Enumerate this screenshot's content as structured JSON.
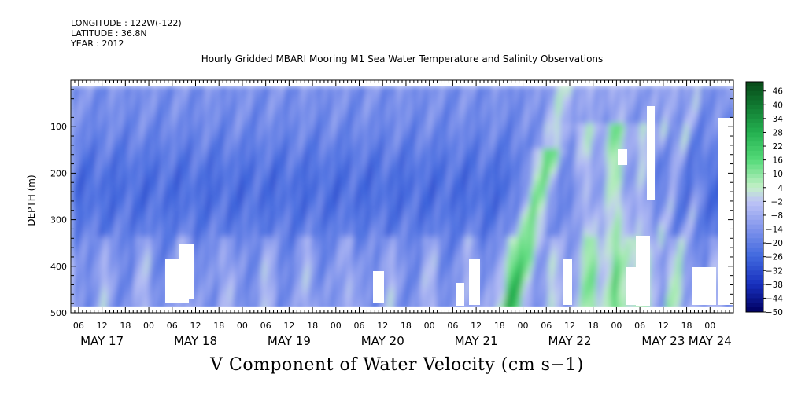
{
  "header": {
    "longitude": "LONGITUDE : 122W(-122)",
    "latitude": "LATITUDE : 36.8N",
    "year": "YEAR : 2012"
  },
  "chart_data": {
    "type": "heatmap",
    "title": "Hourly Gridded MBARI Mooring M1 Sea Water Temperature and Salinity Observations",
    "xlabel": "V Component of Water Velocity (cm s−1)",
    "ylabel": "DEPTH (m)",
    "x_start_hour": 4,
    "x_end_hour": 174,
    "xlim_hours_since_May17_00": [
      4,
      174
    ],
    "ylim_depth_m": [
      500,
      0
    ],
    "y_ticks": [
      "100",
      "200",
      "300",
      "400",
      "500"
    ],
    "x_hour_ticks": [
      {
        "h": 6,
        "label": "06"
      },
      {
        "h": 12,
        "label": "12"
      },
      {
        "h": 18,
        "label": "18"
      },
      {
        "h": 24,
        "label": "00"
      },
      {
        "h": 30,
        "label": "06"
      },
      {
        "h": 36,
        "label": "12"
      },
      {
        "h": 42,
        "label": "18"
      },
      {
        "h": 48,
        "label": "00"
      },
      {
        "h": 54,
        "label": "06"
      },
      {
        "h": 60,
        "label": "12"
      },
      {
        "h": 66,
        "label": "18"
      },
      {
        "h": 72,
        "label": "00"
      },
      {
        "h": 78,
        "label": "06"
      },
      {
        "h": 84,
        "label": "12"
      },
      {
        "h": 90,
        "label": "18"
      },
      {
        "h": 96,
        "label": "00"
      },
      {
        "h": 102,
        "label": "06"
      },
      {
        "h": 108,
        "label": "12"
      },
      {
        "h": 114,
        "label": "18"
      },
      {
        "h": 120,
        "label": "00"
      },
      {
        "h": 126,
        "label": "06"
      },
      {
        "h": 132,
        "label": "12"
      },
      {
        "h": 138,
        "label": "18"
      },
      {
        "h": 144,
        "label": "00"
      },
      {
        "h": 150,
        "label": "06"
      },
      {
        "h": 156,
        "label": "12"
      },
      {
        "h": 162,
        "label": "18"
      },
      {
        "h": 168,
        "label": "00"
      }
    ],
    "x_day_labels": [
      {
        "h": 12,
        "label": "MAY 17"
      },
      {
        "h": 36,
        "label": "MAY 18"
      },
      {
        "h": 60,
        "label": "MAY 19"
      },
      {
        "h": 84,
        "label": "MAY 20"
      },
      {
        "h": 108,
        "label": "MAY 21"
      },
      {
        "h": 132,
        "label": "MAY 22"
      },
      {
        "h": 156,
        "label": "MAY 23"
      },
      {
        "h": 168,
        "label": "MAY 24"
      }
    ],
    "colorbar": {
      "range": [
        -50,
        50
      ],
      "labels": [
        "46",
        "40",
        "34",
        "28",
        "22",
        "16",
        "10",
        "4",
        "−2",
        "−8",
        "−14",
        "−20",
        "−26",
        "−32",
        "−38",
        "−44",
        "−50"
      ]
    },
    "approx_field_description_values": {
      "background_velocity_cm_s": -16,
      "strong_negative_core_depth_m": 230,
      "strong_negative_core_value": -32,
      "positive_bands_hours": [
        [
          117,
          127
        ],
        [
          130,
          157
        ]
      ],
      "positive_band_value": 14
    }
  }
}
